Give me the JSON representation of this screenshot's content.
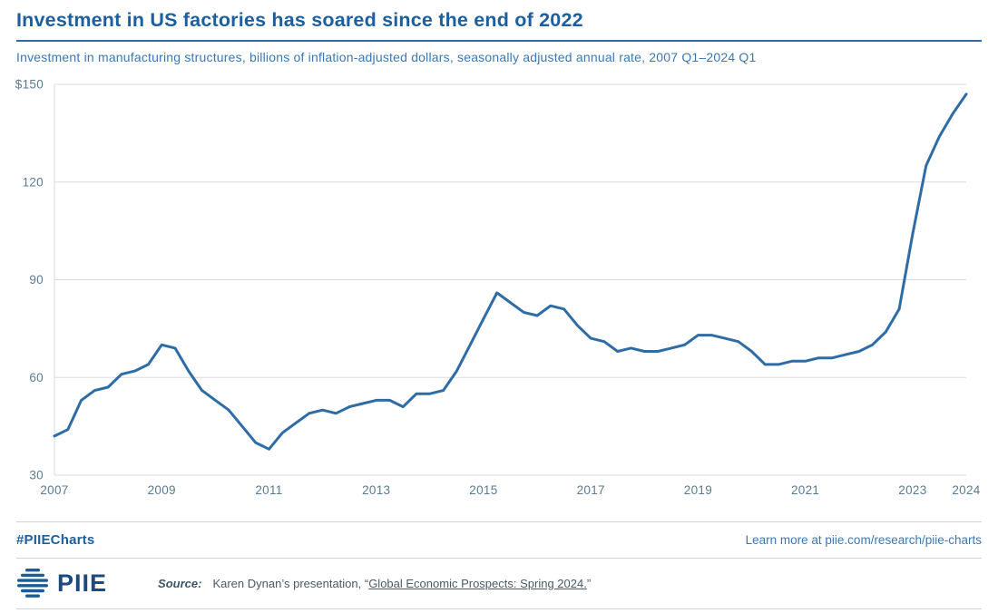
{
  "header": {
    "title": "Investment in US factories has soared since the end of 2022",
    "subtitle": "Investment in manufacturing structures, billions of inflation-adjusted dollars, seasonally adjusted annual rate, 2007 Q1–2024 Q1"
  },
  "footer": {
    "hashtag": "#PIIECharts",
    "learn_more": "Learn more at piie.com/research/piie-charts",
    "logo_text": "PIIE",
    "source_label": "Source:",
    "source_prefix": "Karen Dynan’s presentation, “",
    "source_link": "Global Economic Prospects: Spring 2024.",
    "source_suffix": "”"
  },
  "colors": {
    "title_color": "#1c5f9f",
    "subtitle_color": "#3a78b5",
    "accent_rule": "#2e6ca6",
    "line_color": "#2e6ca6",
    "grid_color": "#d7dce2",
    "axis_text": "#5b7b91",
    "divider": "#ccd4db",
    "source_text": "#4a5a66",
    "logo_color": "#1d5b97",
    "logo_text_color": "#1b4b7e"
  },
  "chart_data": {
    "type": "line",
    "title": "Investment in US factories has soared since the end of 2022",
    "subtitle": "Investment in manufacturing structures, billions of inflation-adjusted dollars, seasonally adjusted annual rate, 2007 Q1–2024 Q1",
    "unit": "billions of inflation-adjusted dollars, seasonally adjusted annual rate",
    "series": [
      {
        "name": "Investment in manufacturing structures",
        "x_start": 2007.0,
        "x_step": 0.25,
        "values": [
          42,
          44,
          53,
          56,
          57,
          61,
          62,
          64,
          70,
          69,
          62,
          56,
          53,
          50,
          45,
          40,
          38,
          43,
          46,
          49,
          50,
          49,
          51,
          52,
          53,
          53,
          51,
          55,
          55,
          56,
          62,
          70,
          78,
          86,
          83,
          80,
          79,
          82,
          81,
          76,
          72,
          71,
          68,
          69,
          68,
          68,
          69,
          70,
          73,
          73,
          72,
          71,
          68,
          64,
          64,
          65,
          65,
          66,
          66,
          67,
          68,
          70,
          74,
          81,
          104,
          125,
          134,
          141,
          147
        ]
      }
    ],
    "xlim": [
      2007,
      2024
    ],
    "ylim": [
      30,
      150
    ],
    "y_ticks": [
      30,
      60,
      90,
      120,
      150
    ],
    "y_tick_labels": [
      "30",
      "60",
      "90",
      "120",
      "$150"
    ],
    "x_ticks": [
      2007,
      2009,
      2011,
      2013,
      2015,
      2017,
      2019,
      2021,
      2023,
      2024
    ],
    "x_tick_labels": [
      "2007",
      "2009",
      "2011",
      "2013",
      "2015",
      "2017",
      "2019",
      "2021",
      "2023",
      "2024"
    ],
    "grid": "horizontal",
    "legend": "none"
  }
}
